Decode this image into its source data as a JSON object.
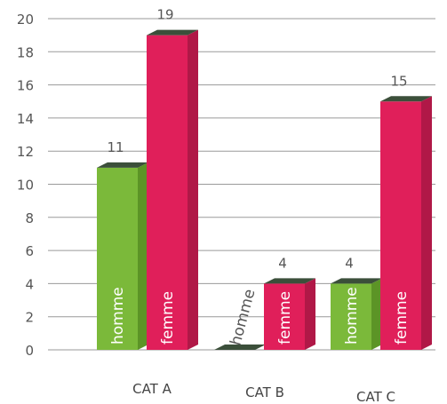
{
  "chart_data": {
    "type": "bar",
    "categories": [
      "CAT A",
      "CAT B",
      "CAT C"
    ],
    "series": [
      {
        "name": "homme",
        "values": [
          11,
          0,
          4
        ],
        "color": "#7bb93a",
        "side_color": "#5c9426",
        "top_color": "#3b4f3a"
      },
      {
        "name": "femme",
        "values": [
          19,
          4,
          15
        ],
        "color": "#e01f5a",
        "side_color": "#b01847",
        "top_color": "#3b4f3a"
      }
    ],
    "data_labels": [
      [
        "11",
        "",
        "4"
      ],
      [
        "19",
        "4",
        "15"
      ]
    ],
    "ylim": [
      0,
      20
    ],
    "yticks": [
      "0",
      "2",
      "4",
      "6",
      "8",
      "10",
      "12",
      "14",
      "16",
      "18",
      "20"
    ],
    "grid": true,
    "legend": "none",
    "title": "",
    "xlabel": "",
    "ylabel": ""
  }
}
